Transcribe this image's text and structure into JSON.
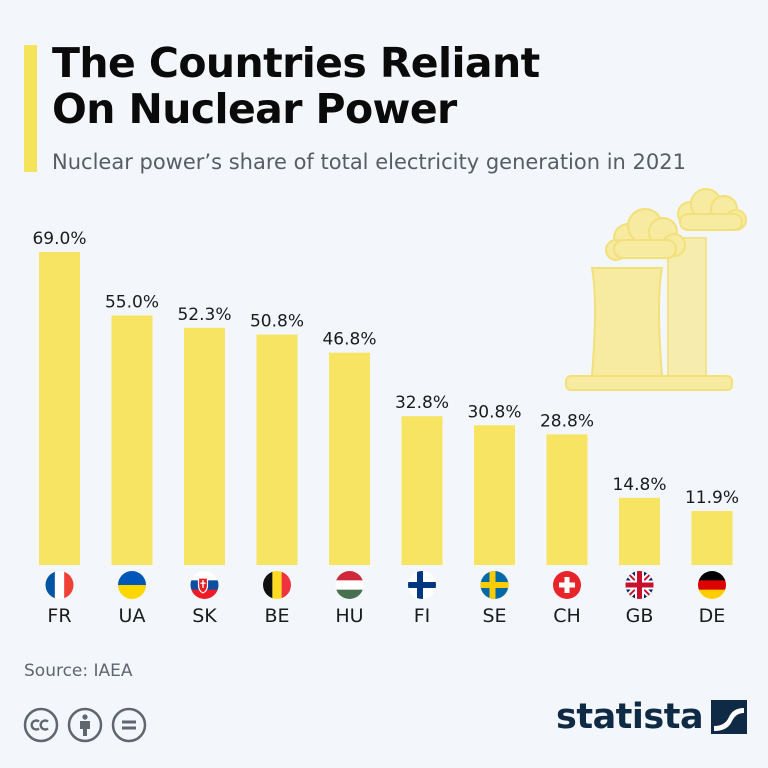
{
  "header": {
    "title": "The Countries Reliant On Nuclear Power",
    "subtitle": "Nuclear power’s share of total electricity generation in 2021"
  },
  "footer": {
    "source": "Source: IAEA",
    "brand": "statista",
    "license_icons": [
      "cc-icon",
      "attribution-icon",
      "no-derivatives-icon"
    ]
  },
  "colors": {
    "bar": "#f7e463",
    "accent": "#f5e35c",
    "illustration": "#f6eba0",
    "brand": "#0f2a44"
  },
  "chart_data": {
    "type": "bar",
    "title": "The Countries Reliant On Nuclear Power",
    "subtitle": "Nuclear power’s share of total electricity generation in 2021",
    "categories": [
      "FR",
      "UA",
      "SK",
      "BE",
      "HU",
      "FI",
      "SE",
      "CH",
      "GB",
      "DE"
    ],
    "values": [
      69.0,
      55.0,
      52.3,
      50.8,
      46.8,
      32.8,
      30.8,
      28.8,
      14.8,
      11.9
    ],
    "value_labels": [
      "69.0%",
      "55.0%",
      "52.3%",
      "50.8%",
      "46.8%",
      "32.8%",
      "30.8%",
      "28.8%",
      "14.8%",
      "11.9%"
    ],
    "flags": [
      "france-flag-icon",
      "ukraine-flag-icon",
      "slovakia-flag-icon",
      "belgium-flag-icon",
      "hungary-flag-icon",
      "finland-flag-icon",
      "sweden-flag-icon",
      "switzerland-flag-icon",
      "uk-flag-icon",
      "germany-flag-icon"
    ],
    "xlabel": "",
    "ylabel": "",
    "ylim": [
      0,
      69.0
    ],
    "grid": false,
    "legend": "none"
  }
}
